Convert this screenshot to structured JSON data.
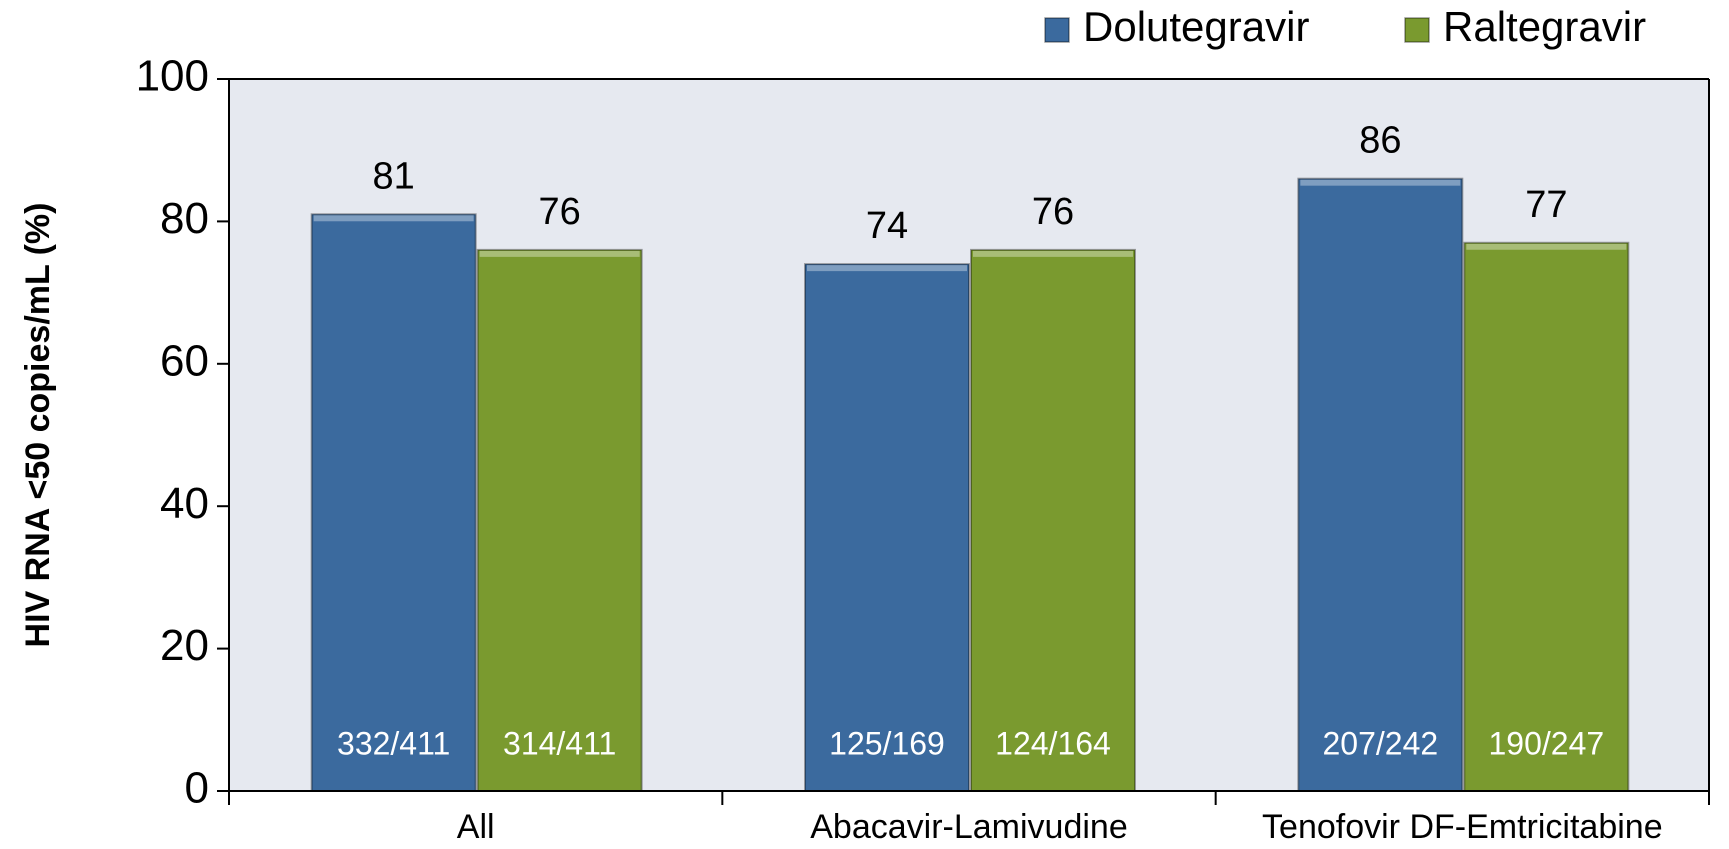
{
  "chart_data": {
    "type": "bar",
    "y_label": "HIV RNA <50 copies/mL (%)",
    "categories": [
      "All",
      "Abacavir-Lamivudine",
      "Tenofovir DF-Emtricitabine"
    ],
    "series": [
      {
        "name": "Dolutegravir",
        "color": "#3b6a9e",
        "values": [
          81,
          74,
          86
        ],
        "counts": [
          "332/411",
          "125/169",
          "207/242"
        ]
      },
      {
        "name": "Raltegravir",
        "color": "#7a9a2f",
        "values": [
          76,
          76,
          77
        ],
        "counts": [
          "314/411",
          "124/164",
          "190/247"
        ]
      }
    ],
    "ylim": [
      0,
      100
    ],
    "yticks": [
      0,
      20,
      40,
      60,
      80,
      100
    ],
    "legend": "top-right",
    "plot_background": "#e6e9f0"
  }
}
